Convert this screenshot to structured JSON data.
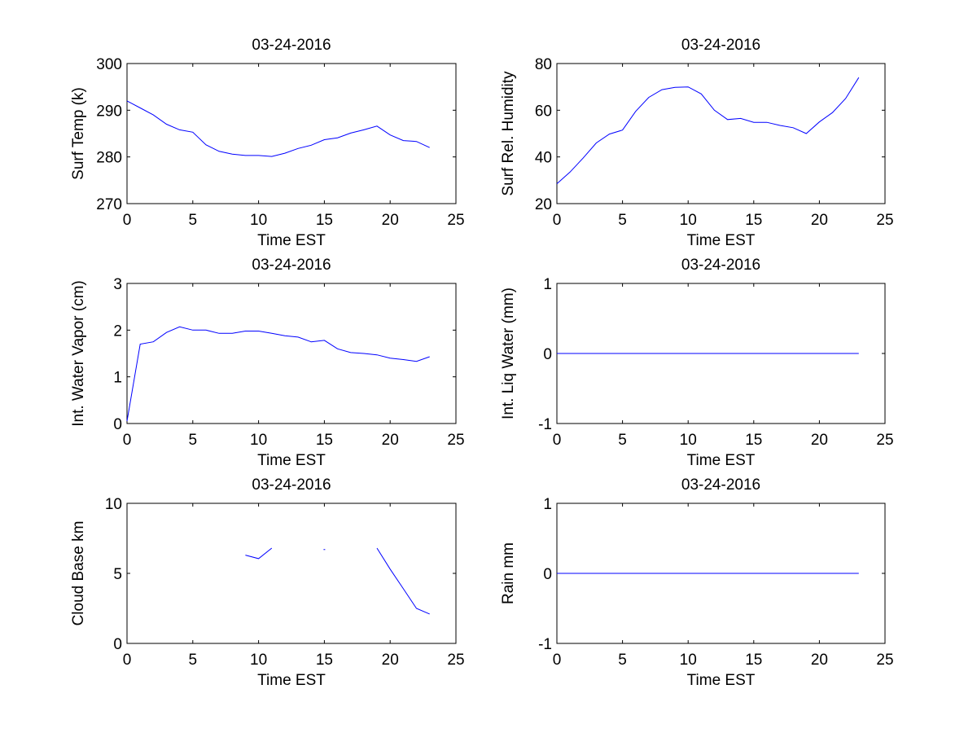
{
  "figure": {
    "background": "#ffffff",
    "line_color": "#0000ff"
  },
  "chart_data": [
    {
      "id": "surf-temp",
      "type": "line",
      "title": "03-24-2016",
      "xlabel": "Time EST",
      "ylabel": "Surf Temp (k)",
      "xlim": [
        0,
        25
      ],
      "ylim": [
        270,
        300
      ],
      "xticks": [
        0,
        5,
        10,
        15,
        20,
        25
      ],
      "yticks": [
        270,
        280,
        290,
        300
      ],
      "series": [
        {
          "name": "Surf Temp",
          "x": [
            0,
            1,
            2,
            3,
            4,
            5,
            6,
            7,
            8,
            9,
            10,
            11,
            12,
            13,
            14,
            15,
            16,
            17,
            18,
            19,
            20,
            21,
            22,
            23
          ],
          "y": [
            292,
            290.5,
            289,
            287,
            285.8,
            285.3,
            282.6,
            281.2,
            280.6,
            280.3,
            280.3,
            280.1,
            280.8,
            281.8,
            282.5,
            283.7,
            284.1,
            285.1,
            285.8,
            286.6,
            284.7,
            283.5,
            283.3,
            282
          ]
        }
      ]
    },
    {
      "id": "surf-rel-humidity",
      "type": "line",
      "title": "03-24-2016",
      "xlabel": "Time EST",
      "ylabel": "Surf Rel. Humidity",
      "xlim": [
        0,
        25
      ],
      "ylim": [
        20,
        80
      ],
      "xticks": [
        0,
        5,
        10,
        15,
        20,
        25
      ],
      "yticks": [
        20,
        40,
        60,
        80
      ],
      "series": [
        {
          "name": "Surf Rel. Humidity",
          "x": [
            0,
            1,
            2,
            3,
            4,
            5,
            6,
            7,
            8,
            9,
            10,
            11,
            12,
            13,
            14,
            15,
            16,
            17,
            18,
            19,
            20,
            21,
            22,
            23
          ],
          "y": [
            28.5,
            33.5,
            39.5,
            46,
            49.8,
            51.5,
            59.5,
            65.5,
            68.8,
            69.8,
            70,
            67,
            60,
            56,
            56.5,
            54.8,
            54.8,
            53.5,
            52.5,
            50,
            55,
            59,
            65,
            74
          ]
        }
      ]
    },
    {
      "id": "int-water-vapor",
      "type": "line",
      "title": "03-24-2016",
      "xlabel": "Time EST",
      "ylabel": "Int. Water Vapor (cm)",
      "xlim": [
        0,
        25
      ],
      "ylim": [
        0,
        3
      ],
      "xticks": [
        0,
        5,
        10,
        15,
        20,
        25
      ],
      "yticks": [
        0,
        1,
        2,
        3
      ],
      "series": [
        {
          "name": "Int. Water Vapor",
          "x": [
            0,
            1,
            2,
            3,
            4,
            5,
            6,
            7,
            8,
            9,
            10,
            11,
            12,
            13,
            14,
            15,
            16,
            17,
            18,
            19,
            20,
            21,
            22,
            23
          ],
          "y": [
            0.05,
            1.7,
            1.75,
            1.95,
            2.07,
            2.0,
            2.0,
            1.93,
            1.93,
            1.98,
            1.98,
            1.93,
            1.88,
            1.85,
            1.75,
            1.78,
            1.6,
            1.52,
            1.5,
            1.47,
            1.4,
            1.37,
            1.33,
            1.43
          ]
        }
      ]
    },
    {
      "id": "int-liq-water",
      "type": "line",
      "title": "03-24-2016",
      "xlabel": "Time EST",
      "ylabel": "Int. Liq Water (mm)",
      "xlim": [
        0,
        25
      ],
      "ylim": [
        -1,
        1
      ],
      "xticks": [
        0,
        5,
        10,
        15,
        20,
        25
      ],
      "yticks": [
        -1,
        0,
        1
      ],
      "series": [
        {
          "name": "Int. Liq Water",
          "x": [
            0,
            1,
            2,
            3,
            4,
            5,
            6,
            7,
            8,
            9,
            10,
            11,
            12,
            13,
            14,
            15,
            16,
            17,
            18,
            19,
            20,
            21,
            22,
            23
          ],
          "y": [
            0,
            0,
            0,
            0,
            0,
            0,
            0,
            0,
            0,
            0,
            0,
            0,
            0,
            0,
            0,
            0,
            0,
            0,
            0,
            0,
            0,
            0,
            0,
            0
          ]
        }
      ]
    },
    {
      "id": "cloud-base",
      "type": "line",
      "title": "03-24-2016",
      "xlabel": "Time EST",
      "ylabel": "Cloud Base km",
      "xlim": [
        0,
        25
      ],
      "ylim": [
        0,
        10
      ],
      "xticks": [
        0,
        5,
        10,
        15,
        20,
        25
      ],
      "yticks": [
        0,
        5,
        10
      ],
      "series": [
        {
          "name": "Cloud Base",
          "x": [
            0,
            1,
            2,
            3,
            4,
            5,
            6,
            7,
            8,
            9,
            10,
            11,
            12,
            13,
            14,
            15,
            16,
            17,
            18,
            19,
            20,
            21,
            22,
            23
          ],
          "y": [
            null,
            null,
            null,
            null,
            null,
            null,
            null,
            null,
            null,
            6.3,
            6.05,
            6.8,
            null,
            null,
            null,
            6.7,
            null,
            null,
            null,
            6.8,
            5.3,
            3.9,
            2.5,
            2.1
          ]
        }
      ]
    },
    {
      "id": "rain",
      "type": "line",
      "title": "03-24-2016",
      "xlabel": "Time EST",
      "ylabel": "Rain mm",
      "xlim": [
        0,
        25
      ],
      "ylim": [
        -1,
        1
      ],
      "xticks": [
        0,
        5,
        10,
        15,
        20,
        25
      ],
      "yticks": [
        -1,
        0,
        1
      ],
      "series": [
        {
          "name": "Rain",
          "x": [
            0,
            1,
            2,
            3,
            4,
            5,
            6,
            7,
            8,
            9,
            10,
            11,
            12,
            13,
            14,
            15,
            16,
            17,
            18,
            19,
            20,
            21,
            22,
            23
          ],
          "y": [
            0,
            0,
            0,
            0,
            0,
            0,
            0,
            0,
            0,
            0,
            0,
            0,
            0,
            0,
            0,
            0,
            0,
            0,
            0,
            0,
            0,
            0,
            0,
            0
          ]
        }
      ]
    }
  ]
}
